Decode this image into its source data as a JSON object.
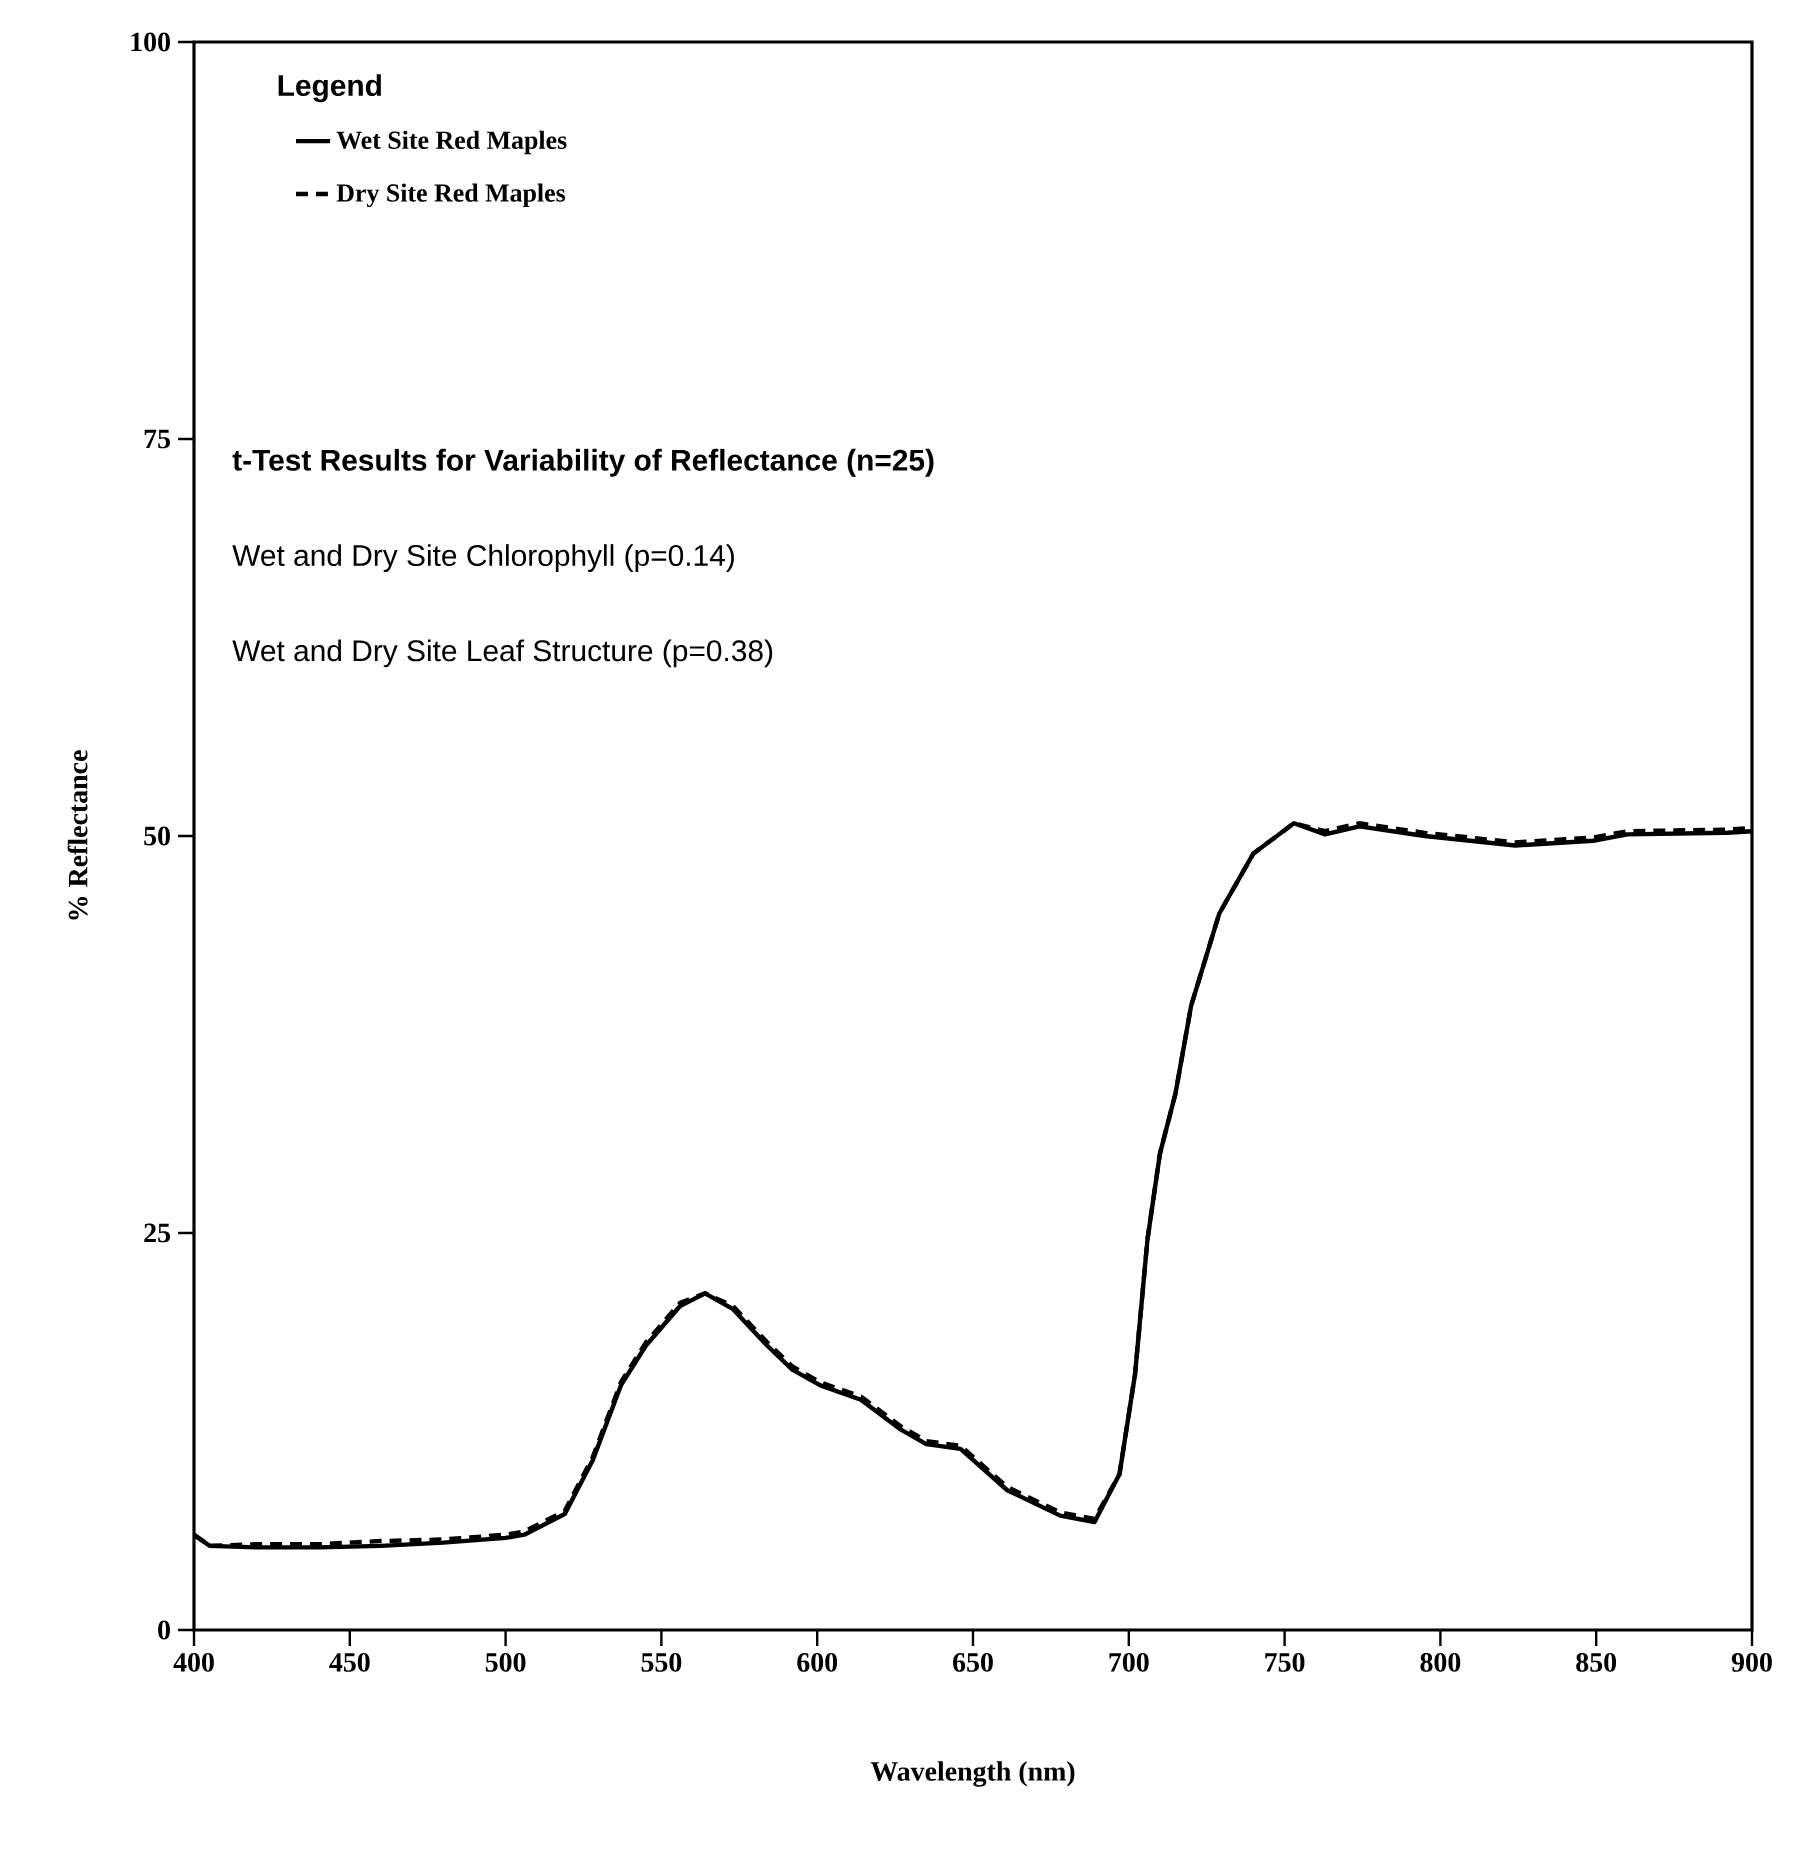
{
  "chart_data": {
    "type": "line",
    "xlabel": "Wavelength  (nm)",
    "ylabel": "% Reflectance",
    "legend_title": "Legend",
    "x": [
      400,
      405,
      420,
      440,
      460,
      480,
      500,
      506,
      519,
      528,
      537,
      545,
      556,
      564,
      573,
      584,
      592,
      601,
      614,
      627,
      635,
      646,
      661,
      678,
      689,
      697,
      702,
      706,
      710,
      715,
      720,
      729,
      740,
      753,
      763,
      774,
      795,
      824,
      849,
      860,
      892,
      900
    ],
    "series": [
      {
        "name": "Wet Site Red Maples",
        "color": "#000000",
        "line_style": "solid",
        "values": [
          6.0,
          5.3,
          5.2,
          5.2,
          5.3,
          5.5,
          5.8,
          6.0,
          7.3,
          10.7,
          15.4,
          17.9,
          20.4,
          21.2,
          20.2,
          17.9,
          16.4,
          15.4,
          14.5,
          12.6,
          11.7,
          11.4,
          8.8,
          7.2,
          6.8,
          9.8,
          16.1,
          24.6,
          30.0,
          33.8,
          39.3,
          45.1,
          48.9,
          50.8,
          50.1,
          50.6,
          50.0,
          49.4,
          49.7,
          50.1,
          50.2,
          50.3
        ]
      },
      {
        "name": "Dry Site Red Maples",
        "color": "#000000",
        "line_style": "dashed",
        "values": [
          6.0,
          5.3,
          5.4,
          5.4,
          5.6,
          5.7,
          6.0,
          6.2,
          7.5,
          10.9,
          15.6,
          18.1,
          20.6,
          21.2,
          20.4,
          18.1,
          16.6,
          15.6,
          14.7,
          12.8,
          11.9,
          11.6,
          9.0,
          7.4,
          7.0,
          9.8,
          16.1,
          24.6,
          30.0,
          33.8,
          39.3,
          45.1,
          48.9,
          50.8,
          50.3,
          50.8,
          50.2,
          49.6,
          49.9,
          50.3,
          50.4,
          50.5
        ]
      }
    ],
    "xlim": [
      400,
      900
    ],
    "ylim": [
      0,
      100
    ],
    "xticks": [
      400,
      450,
      500,
      550,
      600,
      650,
      700,
      750,
      800,
      850,
      900
    ],
    "yticks": [
      0,
      25,
      50,
      75,
      100
    ],
    "grid": false,
    "legend": "top left",
    "marker": "none",
    "annotations": [
      "t-Test Results for Variability of Reflectance (n=25)",
      "Wet and Dry Site Chlorophyll (p=0.14)",
      "Wet and Dry Site Leaf Structure (p=0.38)"
    ]
  }
}
